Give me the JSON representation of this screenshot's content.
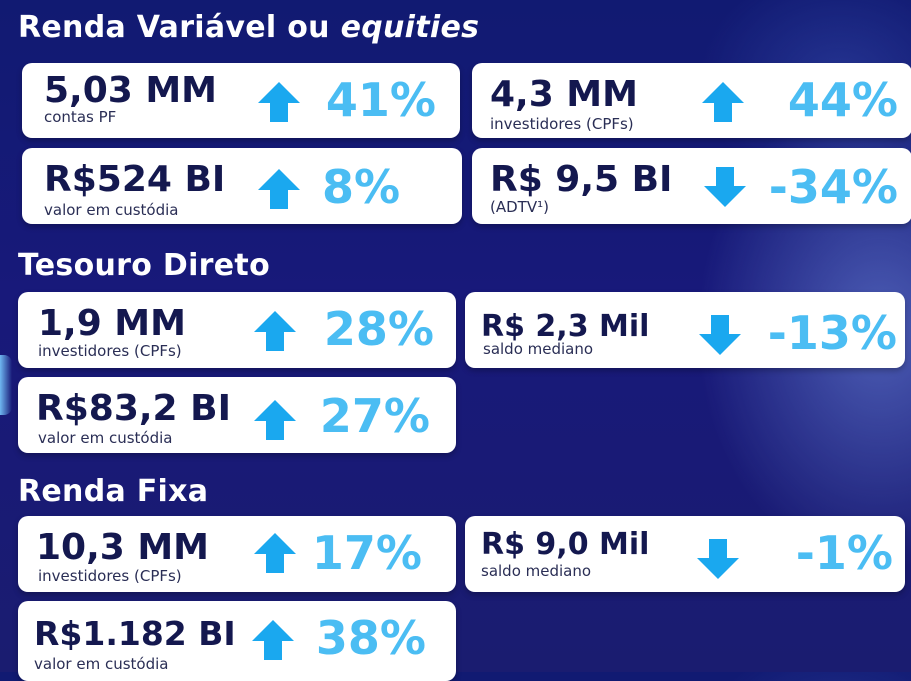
{
  "sections": {
    "rv": {
      "title": "Renda Variável ou ",
      "title_em": "equities"
    },
    "td": {
      "title": "Tesouro Direto"
    },
    "rf": {
      "title": "Renda Fixa"
    }
  },
  "cards": {
    "rv1": {
      "value": "5,03 MM",
      "label": "contas PF",
      "direction": "up",
      "change": "41%"
    },
    "rv2": {
      "value": "4,3 MM",
      "label": "investidores (CPFs)",
      "direction": "up",
      "change": "44%"
    },
    "rv3": {
      "value": "R$524 BI",
      "label": "valor em custódia",
      "direction": "up",
      "change": "8%"
    },
    "rv4": {
      "value": "R$ 9,5 BI",
      "label": "(ADTV¹)",
      "direction": "down",
      "change": "-34%"
    },
    "td1": {
      "value": "1,9 MM",
      "label": "investidores (CPFs)",
      "direction": "up",
      "change": "28%"
    },
    "td2": {
      "value": "R$ 2,3 Mil",
      "label": "saldo mediano",
      "direction": "down",
      "change": "-13%"
    },
    "td3": {
      "value": "R$83,2 BI",
      "label": "valor em custódia",
      "direction": "up",
      "change": "27%"
    },
    "rf1": {
      "value": "10,3 MM",
      "label": "investidores (CPFs)",
      "direction": "up",
      "change": "17%"
    },
    "rf2": {
      "value": "R$ 9,0 Mil",
      "label": "saldo mediano",
      "direction": "down",
      "change": "-1%"
    },
    "rf3": {
      "value": "R$1.182 BI",
      "label": "valor em custódia",
      "direction": "up",
      "change": "38%"
    }
  },
  "colors": {
    "background": "#16197a",
    "card": "#ffffff",
    "value_text": "#14184f",
    "change_text": "#4bbdf3",
    "arrow": "#1aa8ef"
  }
}
